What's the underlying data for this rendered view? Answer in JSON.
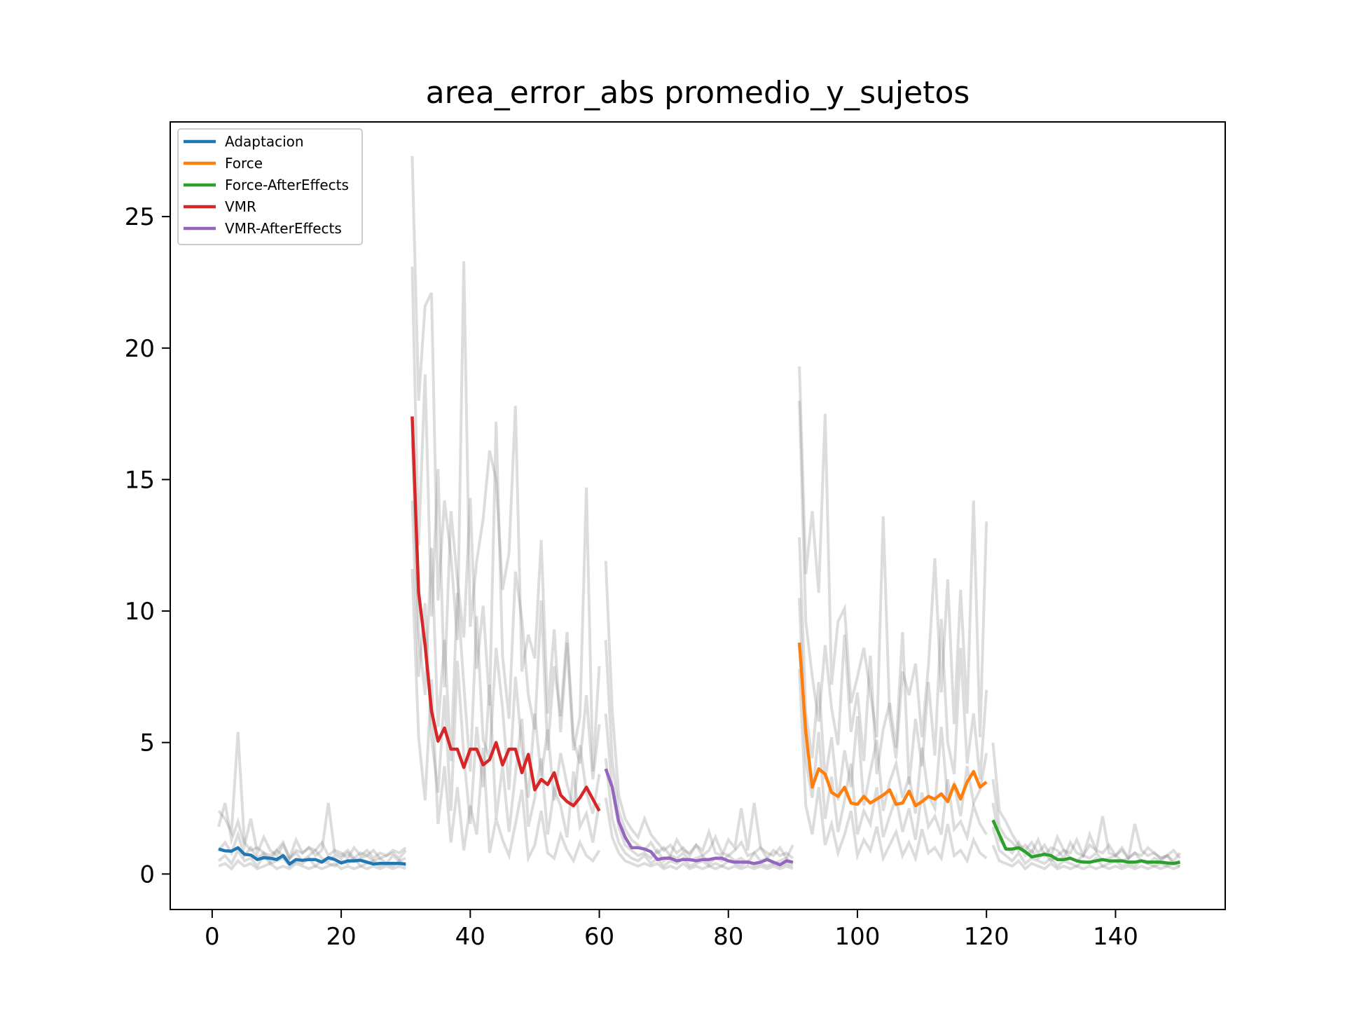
{
  "chart_data": {
    "type": "line",
    "title": "area_error_abs promedio_y_sujetos",
    "xlabel": "",
    "ylabel": "",
    "xlim": [
      -6.5,
      157
    ],
    "ylim": [
      -1.35,
      28.6
    ],
    "xticks": [
      0,
      20,
      40,
      60,
      80,
      100,
      120,
      140
    ],
    "yticks": [
      0,
      5,
      10,
      15,
      20,
      25
    ],
    "grid": false,
    "legend_position": "top-left",
    "background_lines": {
      "color": "#808080",
      "description_visible": false,
      "subjects": [
        [
          2.4,
          2.1,
          1.6,
          5.4,
          1.2,
          0.9,
          1.0,
          0.8,
          0.7,
          0.9,
          1.2,
          0.6,
          0.9,
          0.8,
          1.0,
          0.7,
          0.9,
          2.7,
          0.8,
          0.7,
          0.9,
          0.6,
          0.8,
          0.7,
          0.9,
          0.6,
          0.7,
          0.8,
          0.6,
          0.9,
          27.3,
          18.0,
          21.6,
          22.1,
          10.4,
          14.2,
          12.1,
          8.9,
          23.3,
          9.4,
          11.9,
          13.5,
          16.1,
          15.0,
          10.8,
          12.2,
          17.8,
          7.7,
          9.1,
          8.2,
          12.7,
          6.1,
          9.3,
          5.4,
          8.8,
          4.7,
          6.0,
          14.7,
          3.9,
          7.9,
          11.9,
          6.2,
          3.0,
          2.1,
          1.7,
          1.4,
          2.1,
          1.5,
          1.2,
          0.9,
          1.1,
          0.8,
          1.0,
          0.7,
          1.1,
          0.9,
          1.6,
          0.8,
          0.7,
          1.3,
          1.0,
          2.5,
          0.9,
          2.7,
          1.0,
          0.8,
          0.7,
          1.0,
          0.6,
          1.1,
          19.3,
          11.4,
          13.8,
          10.7,
          17.5,
          7.2,
          9.6,
          10.1,
          6.5,
          7.5,
          8.6,
          6.9,
          5.2,
          13.6,
          6.0,
          4.4,
          7.7,
          6.8,
          8.0,
          5.2,
          7.9,
          12.0,
          6.9,
          11.2,
          5.7,
          10.8,
          6.1,
          14.2,
          5.2,
          13.4,
          5.0,
          2.4,
          2.0,
          1.5,
          1.1,
          0.9,
          1.2,
          0.8,
          1.1,
          0.7,
          1.4,
          0.9,
          0.8,
          1.3,
          0.7,
          1.1,
          0.9,
          2.2,
          0.8,
          0.7,
          1.0,
          0.6,
          1.9,
          0.9,
          0.7,
          0.8,
          0.6,
          0.7,
          0.9,
          0.6
        ],
        [
          1.8,
          2.7,
          1.3,
          2.0,
          1.1,
          2.1,
          0.8,
          1.4,
          0.9,
          0.7,
          1.1,
          0.6,
          1.3,
          0.8,
          1.0,
          0.9,
          1.2,
          0.7,
          0.9,
          0.8,
          0.6,
          1.0,
          0.7,
          0.9,
          0.6,
          0.8,
          0.7,
          0.9,
          0.8,
          1.0,
          23.1,
          12.5,
          19.0,
          9.8,
          15.4,
          7.1,
          13.8,
          11.2,
          9.0,
          14.3,
          7.8,
          10.2,
          6.4,
          17.2,
          8.3,
          5.9,
          11.5,
          9.7,
          6.8,
          5.5,
          10.4,
          4.7,
          7.9,
          6.0,
          9.2,
          5.1,
          4.2,
          6.8,
          3.6,
          5.7,
          8.9,
          4.3,
          2.4,
          1.7,
          1.3,
          1.1,
          0.9,
          1.2,
          0.8,
          1.0,
          0.7,
          1.3,
          0.9,
          0.8,
          1.1,
          0.7,
          0.9,
          1.4,
          0.8,
          0.7,
          0.9,
          1.2,
          0.7,
          0.8,
          1.0,
          0.6,
          0.9,
          0.7,
          0.8,
          0.6,
          18.0,
          9.6,
          7.5,
          5.8,
          8.7,
          6.3,
          4.9,
          9.1,
          5.4,
          6.9,
          4.3,
          8.3,
          3.8,
          5.5,
          6.5,
          4.8,
          9.2,
          3.4,
          5.9,
          4.1,
          7.3,
          4.5,
          9.7,
          5.0,
          3.8,
          8.6,
          4.2,
          6.1,
          3.6,
          7.0,
          3.6,
          1.8,
          1.4,
          1.2,
          0.9,
          1.1,
          0.8,
          1.3,
          0.7,
          1.0,
          0.9,
          0.6,
          1.2,
          0.8,
          0.7,
          1.5,
          0.9,
          0.8,
          1.1,
          0.7,
          0.9,
          0.6,
          0.8,
          0.7,
          1.0,
          0.8,
          0.6,
          0.7,
          0.5,
          0.8
        ],
        [
          0.9,
          1.2,
          0.8,
          1.5,
          0.7,
          1.0,
          0.6,
          0.8,
          0.5,
          0.9,
          0.7,
          0.6,
          0.8,
          0.5,
          0.7,
          0.9,
          0.6,
          0.5,
          0.7,
          0.6,
          0.8,
          0.5,
          0.6,
          0.7,
          0.5,
          0.6,
          0.4,
          0.7,
          0.5,
          0.6,
          16.5,
          9.2,
          6.8,
          12.4,
          5.6,
          8.9,
          4.3,
          10.7,
          7.2,
          3.9,
          9.8,
          5.1,
          4.4,
          8.6,
          6.3,
          3.2,
          7.5,
          4.8,
          2.9,
          6.1,
          3.7,
          5.5,
          2.8,
          4.6,
          3.4,
          2.5,
          4.9,
          3.1,
          2.3,
          3.8,
          6.1,
          3.2,
          1.8,
          1.1,
          0.9,
          0.7,
          0.8,
          0.6,
          0.9,
          0.5,
          0.7,
          0.6,
          0.8,
          0.5,
          0.6,
          0.7,
          0.4,
          0.6,
          0.5,
          0.7,
          0.5,
          0.6,
          0.4,
          0.8,
          0.5,
          0.6,
          0.4,
          0.5,
          0.6,
          0.4,
          12.8,
          6.1,
          4.4,
          7.3,
          3.6,
          5.2,
          2.8,
          4.7,
          3.3,
          6.0,
          2.6,
          3.9,
          5.1,
          2.4,
          3.5,
          4.2,
          2.9,
          3.7,
          2.3,
          4.8,
          3.0,
          2.5,
          5.6,
          2.8,
          3.4,
          2.2,
          4.1,
          2.7,
          3.2,
          4.6,
          2.7,
          1.3,
          1.0,
          0.8,
          1.2,
          0.7,
          0.9,
          0.6,
          0.8,
          0.5,
          0.7,
          0.9,
          0.6,
          0.5,
          0.7,
          0.6,
          0.8,
          0.5,
          0.6,
          0.7,
          0.5,
          0.6,
          0.8,
          0.5,
          0.4,
          0.6,
          0.5,
          0.7,
          0.4,
          0.5
        ],
        [
          0.5,
          0.7,
          0.4,
          0.9,
          0.5,
          0.6,
          0.3,
          0.7,
          0.4,
          0.5,
          0.6,
          0.3,
          0.5,
          0.4,
          0.6,
          0.3,
          0.5,
          0.4,
          0.3,
          0.5,
          0.4,
          0.6,
          0.3,
          0.4,
          0.5,
          0.3,
          0.4,
          0.3,
          0.5,
          0.3,
          14.2,
          7.5,
          10.3,
          5.2,
          3.1,
          6.8,
          2.4,
          8.1,
          4.5,
          1.9,
          5.6,
          3.3,
          7.2,
          2.1,
          4.1,
          1.6,
          3.8,
          5.9,
          1.8,
          2.9,
          4.4,
          1.5,
          3.2,
          2.6,
          1.4,
          3.9,
          1.8,
          2.3,
          1.2,
          2.7,
          4.4,
          2.1,
          1.2,
          0.8,
          0.6,
          0.5,
          0.7,
          0.4,
          0.6,
          0.3,
          0.5,
          0.4,
          0.6,
          0.3,
          0.4,
          0.5,
          0.3,
          0.4,
          0.3,
          0.5,
          0.4,
          0.3,
          0.5,
          0.3,
          0.4,
          0.3,
          0.4,
          0.3,
          0.4,
          0.3,
          10.5,
          4.3,
          2.9,
          5.4,
          2.1,
          3.7,
          1.6,
          2.8,
          4.2,
          1.5,
          2.4,
          1.9,
          3.3,
          1.4,
          2.2,
          2.9,
          1.6,
          2.5,
          1.3,
          3.1,
          1.8,
          2.2,
          1.5,
          3.6,
          1.7,
          2.0,
          1.4,
          2.6,
          1.9,
          1.5,
          1.8,
          0.9,
          0.7,
          0.5,
          0.8,
          0.4,
          0.6,
          0.5,
          0.4,
          0.6,
          0.3,
          0.5,
          0.4,
          0.3,
          0.5,
          0.4,
          0.6,
          0.3,
          0.4,
          0.5,
          0.3,
          0.4,
          0.3,
          0.5,
          0.4,
          0.3,
          0.4,
          0.3,
          0.4,
          0.3
        ],
        [
          0.3,
          0.4,
          0.2,
          0.5,
          0.3,
          0.4,
          0.2,
          0.3,
          0.4,
          0.2,
          0.3,
          0.2,
          0.4,
          0.3,
          0.2,
          0.3,
          0.2,
          0.3,
          0.4,
          0.2,
          0.3,
          0.2,
          0.3,
          0.2,
          0.3,
          0.2,
          0.3,
          0.2,
          0.3,
          0.2,
          11.6,
          5.2,
          2.8,
          7.4,
          1.9,
          4.1,
          1.2,
          3.3,
          0.9,
          2.6,
          1.5,
          4.8,
          0.8,
          2.1,
          1.3,
          0.7,
          1.9,
          3.2,
          0.6,
          1.1,
          2.4,
          0.8,
          0.6,
          1.5,
          0.9,
          0.5,
          1.2,
          0.7,
          0.5,
          0.9,
          2.9,
          1.4,
          0.8,
          0.5,
          0.4,
          0.3,
          0.4,
          0.3,
          0.4,
          0.2,
          0.3,
          0.2,
          0.4,
          0.2,
          0.3,
          0.2,
          0.3,
          0.2,
          0.3,
          0.2,
          0.3,
          0.2,
          0.3,
          0.2,
          0.3,
          0.2,
          0.3,
          0.2,
          0.3,
          0.2,
          7.8,
          2.6,
          1.5,
          3.3,
          1.1,
          1.9,
          0.8,
          1.5,
          2.4,
          0.7,
          1.3,
          0.9,
          1.8,
          0.6,
          1.1,
          1.6,
          0.7,
          1.2,
          0.6,
          1.7,
          0.8,
          1.0,
          0.6,
          1.9,
          0.7,
          0.9,
          0.5,
          1.3,
          0.8,
          0.6,
          1.1,
          0.5,
          0.4,
          0.3,
          0.5,
          0.2,
          0.4,
          0.3,
          0.2,
          0.4,
          0.2,
          0.3,
          0.2,
          0.3,
          0.2,
          0.3,
          0.2,
          0.3,
          0.2,
          0.3,
          0.2,
          0.3,
          0.2,
          0.3,
          0.2,
          0.3,
          0.2,
          0.3,
          0.2,
          0.3
        ]
      ]
    },
    "series": [
      {
        "name": "Adaptacion",
        "color": "#1f77b4",
        "x": [
          1,
          2,
          3,
          4,
          5,
          6,
          7,
          8,
          9,
          10,
          11,
          12,
          13,
          14,
          15,
          16,
          17,
          18,
          19,
          20,
          21,
          22,
          23,
          24,
          25,
          26,
          27,
          28,
          29,
          30
        ],
        "y": [
          0.95,
          0.88,
          0.87,
          1.0,
          0.75,
          0.72,
          0.55,
          0.62,
          0.6,
          0.55,
          0.7,
          0.38,
          0.55,
          0.52,
          0.55,
          0.55,
          0.45,
          0.62,
          0.55,
          0.42,
          0.5,
          0.5,
          0.52,
          0.45,
          0.38,
          0.4,
          0.4,
          0.4,
          0.4,
          0.38
        ]
      },
      {
        "name": "Force",
        "color": "#ff7f0e",
        "x": [
          91,
          92,
          93,
          94,
          95,
          96,
          97,
          98,
          99,
          100,
          101,
          102,
          103,
          104,
          105,
          106,
          107,
          108,
          109,
          110,
          111,
          112,
          113,
          114,
          115,
          116,
          117,
          118,
          119,
          120
        ],
        "y": [
          8.8,
          5.4,
          3.3,
          4.0,
          3.8,
          3.1,
          2.95,
          3.3,
          2.7,
          2.65,
          2.95,
          2.7,
          2.85,
          3.0,
          3.2,
          2.65,
          2.7,
          3.15,
          2.6,
          2.75,
          2.95,
          2.85,
          3.05,
          2.75,
          3.4,
          2.85,
          3.5,
          3.9,
          3.3,
          3.5
        ]
      },
      {
        "name": "Force-AfterEffects",
        "color": "#2ca02c",
        "x": [
          121,
          122,
          123,
          124,
          125,
          126,
          127,
          128,
          129,
          130,
          131,
          132,
          133,
          134,
          135,
          136,
          137,
          138,
          139,
          140,
          141,
          142,
          143,
          144,
          145,
          146,
          147,
          148,
          149,
          150
        ],
        "y": [
          2.05,
          1.5,
          0.95,
          0.95,
          1.0,
          0.85,
          0.65,
          0.7,
          0.75,
          0.7,
          0.55,
          0.55,
          0.6,
          0.5,
          0.45,
          0.45,
          0.5,
          0.55,
          0.5,
          0.5,
          0.5,
          0.45,
          0.45,
          0.5,
          0.45,
          0.45,
          0.45,
          0.42,
          0.4,
          0.45
        ]
      },
      {
        "name": "VMR",
        "color": "#d62728",
        "x": [
          31,
          32,
          33,
          34,
          35,
          36,
          37,
          38,
          39,
          40,
          41,
          42,
          43,
          44,
          45,
          46,
          47,
          48,
          49,
          50,
          51,
          52,
          53,
          54,
          55,
          56,
          57,
          58,
          59,
          60
        ],
        "y": [
          17.4,
          10.7,
          8.7,
          6.2,
          5.05,
          5.55,
          4.75,
          4.75,
          4.05,
          4.75,
          4.75,
          4.15,
          4.35,
          5.0,
          4.15,
          4.75,
          4.75,
          3.85,
          4.55,
          3.2,
          3.6,
          3.4,
          3.85,
          3.0,
          2.75,
          2.6,
          2.9,
          3.3,
          2.85,
          2.4
        ]
      },
      {
        "name": "VMR-AfterEffects",
        "color": "#9467bd",
        "x": [
          61,
          62,
          63,
          64,
          65,
          66,
          67,
          68,
          69,
          70,
          71,
          72,
          73,
          74,
          75,
          76,
          77,
          78,
          79,
          80,
          81,
          82,
          83,
          84,
          85,
          86,
          87,
          88,
          89,
          90
        ],
        "y": [
          4.0,
          3.3,
          2.0,
          1.4,
          1.0,
          1.0,
          0.95,
          0.85,
          0.55,
          0.6,
          0.6,
          0.5,
          0.55,
          0.55,
          0.5,
          0.55,
          0.55,
          0.6,
          0.6,
          0.5,
          0.45,
          0.45,
          0.45,
          0.4,
          0.45,
          0.55,
          0.45,
          0.35,
          0.5,
          0.45
        ]
      }
    ]
  }
}
